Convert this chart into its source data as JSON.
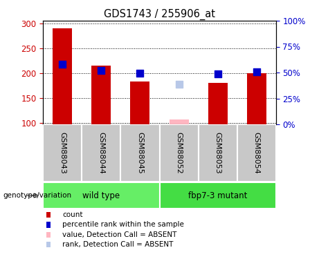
{
  "title": "GDS1743 / 255906_at",
  "samples": [
    "GSM88043",
    "GSM88044",
    "GSM88045",
    "GSM88052",
    "GSM88053",
    "GSM88054"
  ],
  "red_values": [
    290,
    215,
    183,
    null,
    180,
    200
  ],
  "blue_values": [
    217,
    205,
    200,
    null,
    198,
    202
  ],
  "absent_red_values": [
    null,
    null,
    null,
    107,
    null,
    null
  ],
  "absent_blue_values": [
    null,
    null,
    null,
    178,
    null,
    null
  ],
  "ylim": [
    97,
    305
  ],
  "yticks": [
    100,
    150,
    200,
    250,
    300
  ],
  "right_ylim": [
    0,
    100
  ],
  "right_yticks": [
    0,
    25,
    50,
    75,
    100
  ],
  "right_yticklabels": [
    "0%",
    "25%",
    "50%",
    "75%",
    "100%"
  ],
  "groups": [
    {
      "label": "wild type",
      "samples": [
        0,
        1,
        2
      ],
      "color": "#66EE66"
    },
    {
      "label": "fbp7-3 mutant",
      "samples": [
        3,
        4,
        5
      ],
      "color": "#44DD44"
    }
  ],
  "group_label": "genotype/variation",
  "bar_color": "#CC0000",
  "blue_color": "#0000CC",
  "absent_bar_color": "#FFB6C1",
  "absent_blue_color": "#B8C8E8",
  "left_tick_color": "#CC0000",
  "right_tick_color": "#0000CC",
  "grid_color": "#000000",
  "bg_plot": "#FFFFFF",
  "bg_xtick": "#C8C8C8",
  "bar_width": 0.5,
  "square_size": 55,
  "legend_items": [
    {
      "label": "count",
      "color": "#CC0000"
    },
    {
      "label": "percentile rank within the sample",
      "color": "#0000CC"
    },
    {
      "label": "value, Detection Call = ABSENT",
      "color": "#FFB6C1"
    },
    {
      "label": "rank, Detection Call = ABSENT",
      "color": "#B8C8E8"
    }
  ]
}
